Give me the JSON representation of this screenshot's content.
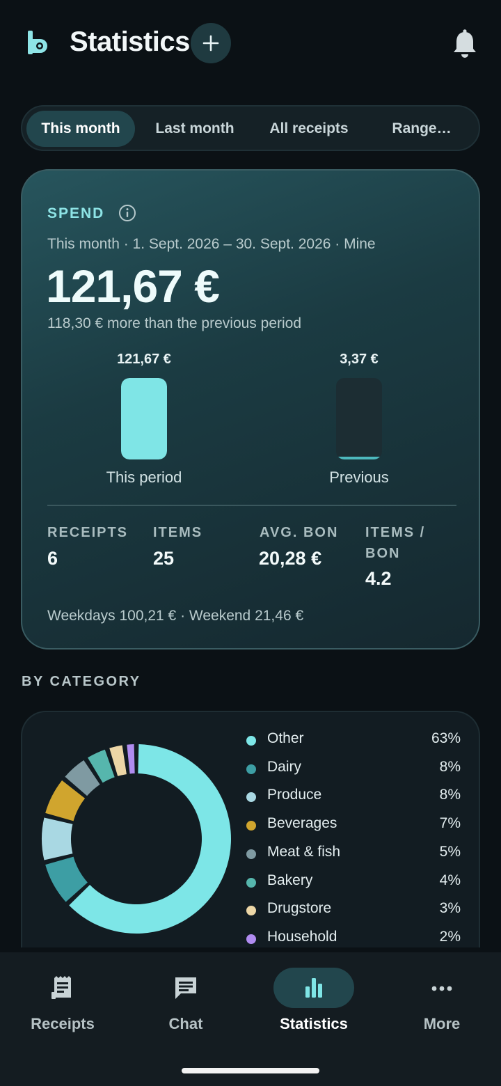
{
  "header": {
    "title": "Statistics",
    "logo_icon": "brand-logo-icon",
    "add_icon": "plus-icon",
    "bell_icon": "bell-icon"
  },
  "tabs": [
    {
      "label": "This month",
      "active": true
    },
    {
      "label": "Last month",
      "active": false
    },
    {
      "label": "All receipts",
      "active": false
    },
    {
      "label": "Range…",
      "active": false
    }
  ],
  "spend": {
    "label": "SPEND",
    "period": "This month · 1. Sept. 2026 – 30. Sept. 2026 · Mine",
    "amount": "121,67 €",
    "delta": "118,30 € more than the previous period",
    "bars": [
      {
        "label": "This period",
        "value_text": "121,67 €",
        "value": 121.67
      },
      {
        "label": "Previous",
        "value_text": "3,37 €",
        "value": 3.37
      }
    ],
    "stats": [
      {
        "label": "RECEIPTS",
        "value": "6"
      },
      {
        "label": "ITEMS",
        "value": "25"
      },
      {
        "label": "AVG. BON",
        "value": "20,28 €"
      },
      {
        "label": "ITEMS / BON",
        "value": "4.2"
      }
    ],
    "weekdays": "Weekdays 100,21 € · Weekend 21,46 €"
  },
  "by_category": {
    "title": "BY CATEGORY",
    "items": [
      {
        "name": "Other",
        "pct_text": "63%",
        "pct": 63,
        "color": "#7de6e7"
      },
      {
        "name": "Dairy",
        "pct_text": "8%",
        "pct": 8,
        "color": "#3d9ea4"
      },
      {
        "name": "Produce",
        "pct_text": "8%",
        "pct": 8,
        "color": "#a9d8e3"
      },
      {
        "name": "Beverages",
        "pct_text": "7%",
        "pct": 7,
        "color": "#d0a52e"
      },
      {
        "name": "Meat & fish",
        "pct_text": "5%",
        "pct": 5,
        "color": "#7f9aa2"
      },
      {
        "name": "Bakery",
        "pct_text": "4%",
        "pct": 4,
        "color": "#56b6ad"
      },
      {
        "name": "Drugstore",
        "pct_text": "3%",
        "pct": 3,
        "color": "#ecd6a6"
      },
      {
        "name": "Household",
        "pct_text": "2%",
        "pct": 2,
        "color": "#b08cf0"
      }
    ]
  },
  "nav": [
    {
      "label": "Receipts",
      "icon": "receipt-icon",
      "active": false
    },
    {
      "label": "Chat",
      "icon": "chat-icon",
      "active": false
    },
    {
      "label": "Statistics",
      "icon": "bar-chart-icon",
      "active": true
    },
    {
      "label": "More",
      "icon": "more-horizontal-icon",
      "active": false
    }
  ]
}
